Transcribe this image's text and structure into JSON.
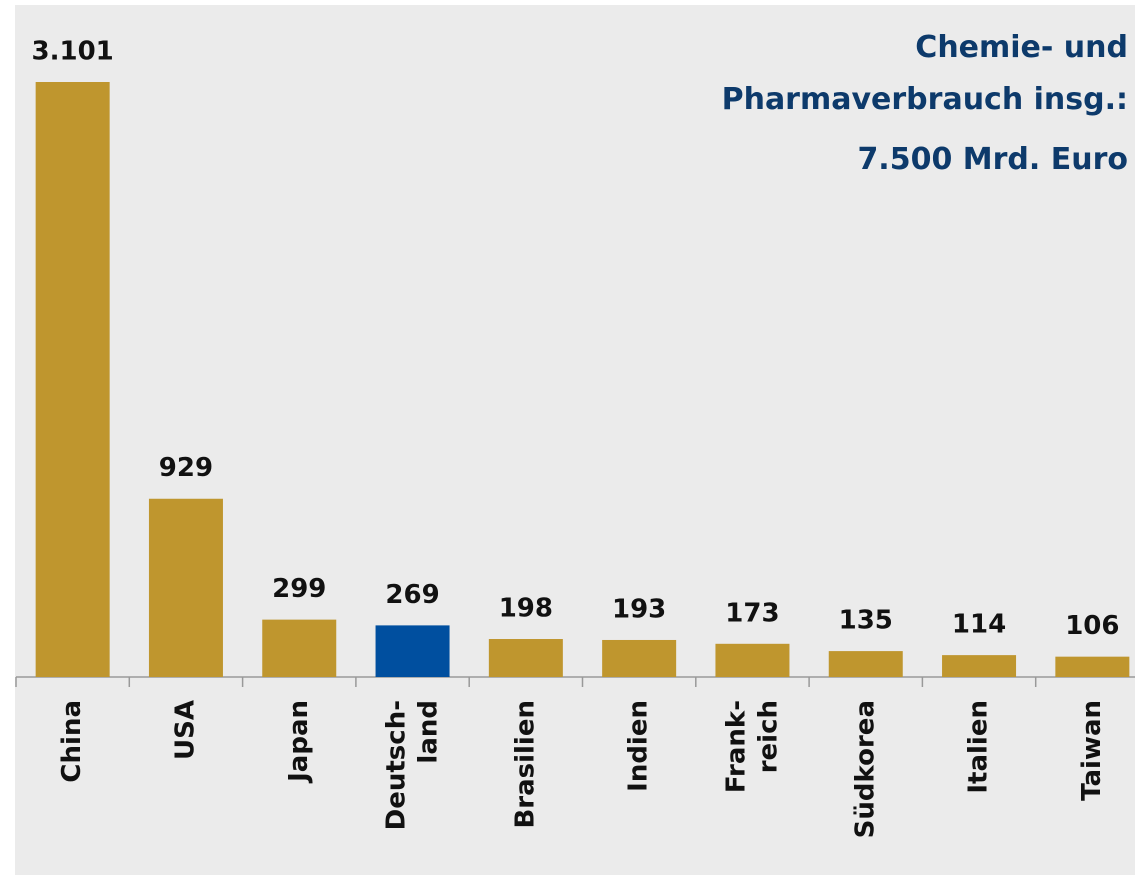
{
  "chart_data": {
    "type": "bar",
    "title": "Chemie- und\nPharmaverbrauch insg.:\n7.500 Mrd. Euro",
    "categories": [
      "China",
      "USA",
      "Japan",
      "Deutsch-\nland",
      "Brasilien",
      "Indien",
      "Frank-\nreich",
      "Südkorea",
      "Italien",
      "Taiwan"
    ],
    "values": [
      3101,
      929,
      299,
      269,
      198,
      193,
      173,
      135,
      114,
      106
    ],
    "value_labels": [
      "3.101",
      "929",
      "299",
      "269",
      "198",
      "193",
      "173",
      "135",
      "114",
      "106"
    ],
    "colors": [
      "#bf962e",
      "#bf962e",
      "#bf962e",
      "#004f9f",
      "#bf962e",
      "#bf962e",
      "#bf962e",
      "#bf962e",
      "#bf962e",
      "#bf962e"
    ]
  }
}
